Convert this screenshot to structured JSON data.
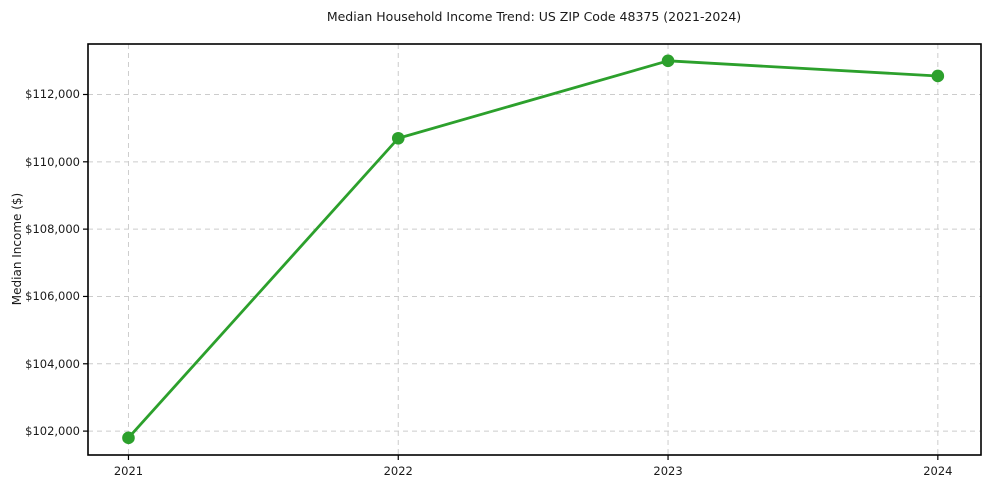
{
  "chart_data": {
    "type": "line",
    "title": "Median Household Income Trend: US ZIP Code 48375 (2021-2024)",
    "xlabel": "",
    "ylabel": "Median Income ($)",
    "categories": [
      "2021",
      "2022",
      "2023",
      "2024"
    ],
    "x": [
      2021,
      2022,
      2023,
      2024
    ],
    "values": [
      101800,
      110700,
      113000,
      112550
    ],
    "y_ticks": [
      {
        "value": 102000,
        "label": "$102,000"
      },
      {
        "value": 104000,
        "label": "$104,000"
      },
      {
        "value": 106000,
        "label": "$106,000"
      },
      {
        "value": 108000,
        "label": "$108,000"
      },
      {
        "value": 110000,
        "label": "$110,000"
      },
      {
        "value": 112000,
        "label": "$112,000"
      }
    ],
    "xlim": [
      2020.85,
      2024.16
    ],
    "ylim": [
      101290,
      113500
    ],
    "grid": true,
    "grid_line_style": "dashed",
    "legend_position": "none",
    "marker": "circle",
    "line_color": "#2ca02c",
    "marker_color": "#2ca02c",
    "grid_color": "#cccccc",
    "spine_color": "#000000",
    "text_color": "#1a1a1a",
    "background_color": "#ffffff"
  }
}
